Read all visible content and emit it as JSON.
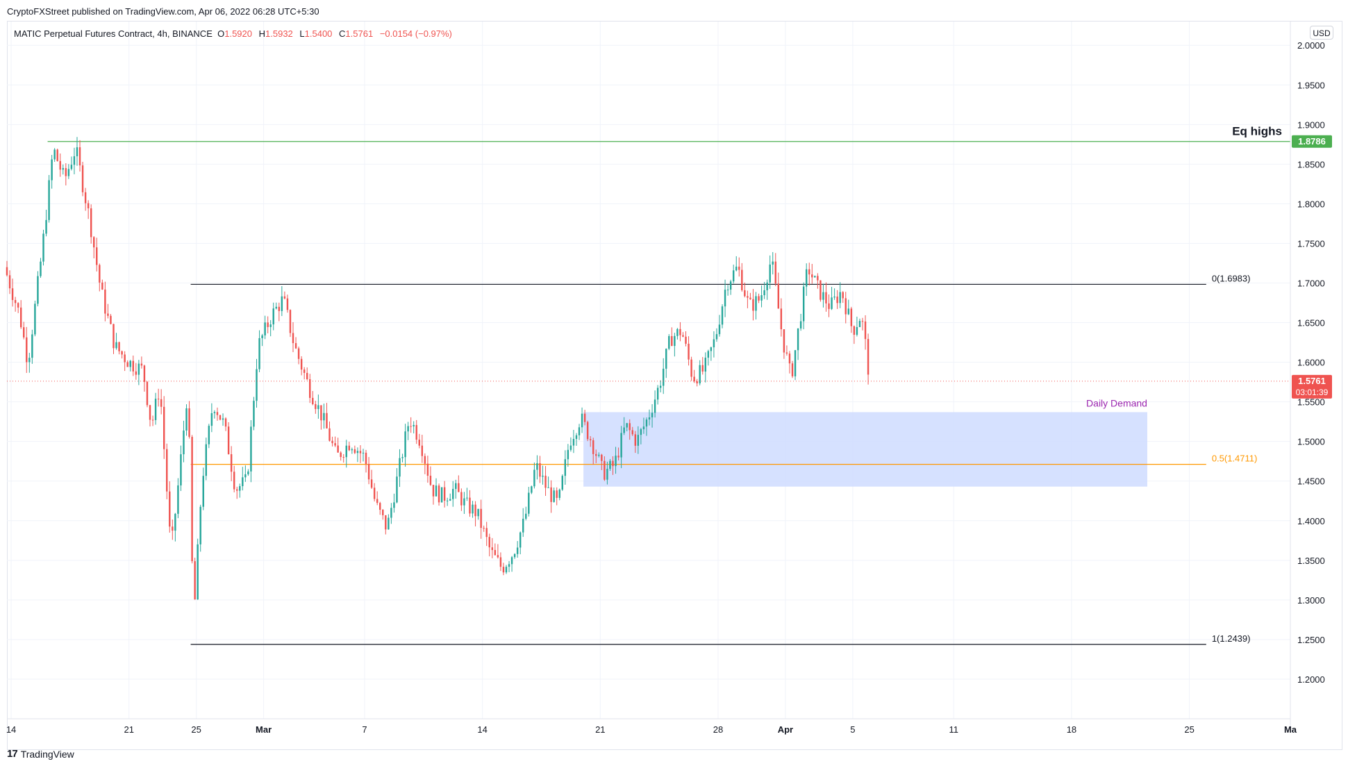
{
  "header": {
    "published": "CryptoFXStreet published on TradingView.com, Apr 06, 2022 06:28 UTC+5:30"
  },
  "legend": {
    "symbol": "MATIC Perpetual Futures Contract, 4h, BINANCE",
    "open_label": "O",
    "open": "1.5920",
    "high_label": "H",
    "high": "1.5932",
    "low_label": "L",
    "low": "1.5400",
    "close_label": "C",
    "close": "1.5761",
    "change": "−0.0154 (−0.97%)"
  },
  "currency": "USD",
  "footer": {
    "logo_text": "TradingView",
    "logo_icon": "tradingview-logo-icon"
  },
  "colors": {
    "up": "#26a69a",
    "down": "#ef5350",
    "eq_line": "#4caf50",
    "fib": "#131722",
    "fib_half": "#ff9800",
    "demand_fill": "#cfdcff",
    "demand_label": "#9c27b0"
  },
  "chart_data": {
    "type": "candlestick",
    "title": "MATIC Perpetual Futures Contract, 4h, BINANCE",
    "y_axis": {
      "range": [
        1.15,
        2.03
      ],
      "tick_labels": [
        "2.0000",
        "1.9500",
        "1.9000",
        "1.8500",
        "1.8000",
        "1.7500",
        "1.7000",
        "1.6500",
        "1.6000",
        "1.5500",
        "1.5000",
        "1.4500",
        "1.4000",
        "1.3500",
        "1.3000",
        "1.2500",
        "1.2000"
      ],
      "tick_values": [
        2.0,
        1.95,
        1.9,
        1.85,
        1.8,
        1.75,
        1.7,
        1.65,
        1.6,
        1.55,
        1.5,
        1.45,
        1.4,
        1.35,
        1.3,
        1.25,
        1.2
      ]
    },
    "x_axis": {
      "start": "2022-02-13T18:00",
      "end": "2022-05-01T00:00",
      "ticks": [
        {
          "label": "14",
          "date": "2022-02-14",
          "bold": false
        },
        {
          "label": "21",
          "date": "2022-02-21",
          "bold": false
        },
        {
          "label": "25",
          "date": "2022-02-25",
          "bold": false
        },
        {
          "label": "Mar",
          "date": "2022-03-01",
          "bold": true
        },
        {
          "label": "7",
          "date": "2022-03-07",
          "bold": false
        },
        {
          "label": "14",
          "date": "2022-03-14",
          "bold": false
        },
        {
          "label": "21",
          "date": "2022-03-21",
          "bold": false
        },
        {
          "label": "28",
          "date": "2022-03-28",
          "bold": false
        },
        {
          "label": "Apr",
          "date": "2022-04-01",
          "bold": true
        },
        {
          "label": "5",
          "date": "2022-04-05",
          "bold": false
        },
        {
          "label": "11",
          "date": "2022-04-11",
          "bold": false
        },
        {
          "label": "18",
          "date": "2022-04-18",
          "bold": false
        },
        {
          "label": "25",
          "date": "2022-04-25",
          "bold": false
        },
        {
          "label": "Ma",
          "date": "2022-05-01",
          "bold": true
        }
      ]
    },
    "candle_interval_hours": 4,
    "candles_start": "2022-02-13T18:00",
    "close_path": [
      {
        "date": "2022-02-13T18:00",
        "price": 1.71
      },
      {
        "date": "2022-02-14T12:00",
        "price": 1.66
      },
      {
        "date": "2022-02-15T00:00",
        "price": 1.6
      },
      {
        "date": "2022-02-15T20:00",
        "price": 1.74
      },
      {
        "date": "2022-02-16T12:00",
        "price": 1.87
      },
      {
        "date": "2022-02-17T04:00",
        "price": 1.83
      },
      {
        "date": "2022-02-17T20:00",
        "price": 1.87
      },
      {
        "date": "2022-02-18T16:00",
        "price": 1.78
      },
      {
        "date": "2022-02-19T08:00",
        "price": 1.69
      },
      {
        "date": "2022-02-20T04:00",
        "price": 1.62
      },
      {
        "date": "2022-02-21T00:00",
        "price": 1.6
      },
      {
        "date": "2022-02-21T20:00",
        "price": 1.59
      },
      {
        "date": "2022-02-22T08:00",
        "price": 1.52
      },
      {
        "date": "2022-02-22T20:00",
        "price": 1.57
      },
      {
        "date": "2022-02-23T12:00",
        "price": 1.36
      },
      {
        "date": "2022-02-24T00:00",
        "price": 1.46
      },
      {
        "date": "2022-02-24T12:00",
        "price": 1.57
      },
      {
        "date": "2022-02-24T20:00",
        "price": 1.27
      },
      {
        "date": "2022-02-25T08:00",
        "price": 1.45
      },
      {
        "date": "2022-02-26T00:00",
        "price": 1.55
      },
      {
        "date": "2022-02-26T16:00",
        "price": 1.52
      },
      {
        "date": "2022-02-27T08:00",
        "price": 1.44
      },
      {
        "date": "2022-02-28T00:00",
        "price": 1.45
      },
      {
        "date": "2022-02-28T16:00",
        "price": 1.62
      },
      {
        "date": "2022-03-01T12:00",
        "price": 1.66
      },
      {
        "date": "2022-03-02T04:00",
        "price": 1.68
      },
      {
        "date": "2022-03-02T20:00",
        "price": 1.62
      },
      {
        "date": "2022-03-03T16:00",
        "price": 1.57
      },
      {
        "date": "2022-03-04T12:00",
        "price": 1.53
      },
      {
        "date": "2022-03-05T08:00",
        "price": 1.48
      },
      {
        "date": "2022-03-06T04:00",
        "price": 1.5
      },
      {
        "date": "2022-03-07T00:00",
        "price": 1.48
      },
      {
        "date": "2022-03-07T16:00",
        "price": 1.42
      },
      {
        "date": "2022-03-08T08:00",
        "price": 1.39
      },
      {
        "date": "2022-03-09T00:00",
        "price": 1.46
      },
      {
        "date": "2022-03-09T16:00",
        "price": 1.53
      },
      {
        "date": "2022-03-10T08:00",
        "price": 1.5
      },
      {
        "date": "2022-03-11T00:00",
        "price": 1.44
      },
      {
        "date": "2022-03-11T16:00",
        "price": 1.43
      },
      {
        "date": "2022-03-12T08:00",
        "price": 1.44
      },
      {
        "date": "2022-03-13T00:00",
        "price": 1.42
      },
      {
        "date": "2022-03-13T16:00",
        "price": 1.41
      },
      {
        "date": "2022-03-14T12:00",
        "price": 1.36
      },
      {
        "date": "2022-03-15T04:00",
        "price": 1.34
      },
      {
        "date": "2022-03-15T20:00",
        "price": 1.36
      },
      {
        "date": "2022-03-16T12:00",
        "price": 1.4
      },
      {
        "date": "2022-03-17T04:00",
        "price": 1.47
      },
      {
        "date": "2022-03-17T20:00",
        "price": 1.44
      },
      {
        "date": "2022-03-18T12:00",
        "price": 1.42
      },
      {
        "date": "2022-03-19T04:00",
        "price": 1.5
      },
      {
        "date": "2022-03-19T20:00",
        "price": 1.53
      },
      {
        "date": "2022-03-20T12:00",
        "price": 1.5
      },
      {
        "date": "2022-03-21T04:00",
        "price": 1.46
      },
      {
        "date": "2022-03-21T20:00",
        "price": 1.47
      },
      {
        "date": "2022-03-22T12:00",
        "price": 1.52
      },
      {
        "date": "2022-03-23T04:00",
        "price": 1.5
      },
      {
        "date": "2022-03-23T20:00",
        "price": 1.53
      },
      {
        "date": "2022-03-24T12:00",
        "price": 1.57
      },
      {
        "date": "2022-03-25T04:00",
        "price": 1.63
      },
      {
        "date": "2022-03-25T20:00",
        "price": 1.64
      },
      {
        "date": "2022-03-26T12:00",
        "price": 1.58
      },
      {
        "date": "2022-03-27T04:00",
        "price": 1.59
      },
      {
        "date": "2022-03-27T20:00",
        "price": 1.63
      },
      {
        "date": "2022-03-28T12:00",
        "price": 1.7
      },
      {
        "date": "2022-03-29T04:00",
        "price": 1.72
      },
      {
        "date": "2022-03-29T20:00",
        "price": 1.67
      },
      {
        "date": "2022-03-30T12:00",
        "price": 1.68
      },
      {
        "date": "2022-03-31T04:00",
        "price": 1.73
      },
      {
        "date": "2022-03-31T20:00",
        "price": 1.63
      },
      {
        "date": "2022-04-01T08:00",
        "price": 1.58
      },
      {
        "date": "2022-04-01T20:00",
        "price": 1.65
      },
      {
        "date": "2022-04-02T08:00",
        "price": 1.72
      },
      {
        "date": "2022-04-03T00:00",
        "price": 1.69
      },
      {
        "date": "2022-04-03T16:00",
        "price": 1.67
      },
      {
        "date": "2022-04-04T08:00",
        "price": 1.69
      },
      {
        "date": "2022-04-05T00:00",
        "price": 1.64
      },
      {
        "date": "2022-04-05T12:00",
        "price": 1.66
      },
      {
        "date": "2022-04-05T20:00",
        "price": 1.61
      },
      {
        "date": "2022-04-06T00:00",
        "price": 1.5761
      }
    ],
    "last_candle": {
      "date": "2022-04-06T00:00",
      "open": 1.592,
      "high": 1.5932,
      "low": 1.54,
      "close": 1.5761
    },
    "horizontal_lines": [
      {
        "name": "eq-highs",
        "price": 1.8786,
        "label": "Eq highs",
        "price_label": "1.8786",
        "from": "2022-02-16T04:00",
        "to": "2022-05-01T00:00"
      },
      {
        "name": "fib-0",
        "price": 1.6983,
        "label": "0(1.6983)",
        "from": "2022-02-24T16:00",
        "to": "2022-04-26T00:00"
      },
      {
        "name": "fib-0.5",
        "price": 1.4711,
        "label": "0.5(1.4711)",
        "from": "2022-02-24T16:00",
        "to": "2022-04-26T00:00"
      },
      {
        "name": "fib-1",
        "price": 1.2439,
        "label": "1(1.2439)",
        "from": "2022-02-24T16:00",
        "to": "2022-04-26T00:00"
      }
    ],
    "zones": [
      {
        "name": "daily-demand",
        "label": "Daily Demand",
        "top": 1.537,
        "bottom": 1.443,
        "from": "2022-03-20T00:00",
        "to": "2022-04-22T12:00"
      }
    ],
    "current_price": {
      "value": "1.5761",
      "countdown": "03:01:39"
    }
  }
}
